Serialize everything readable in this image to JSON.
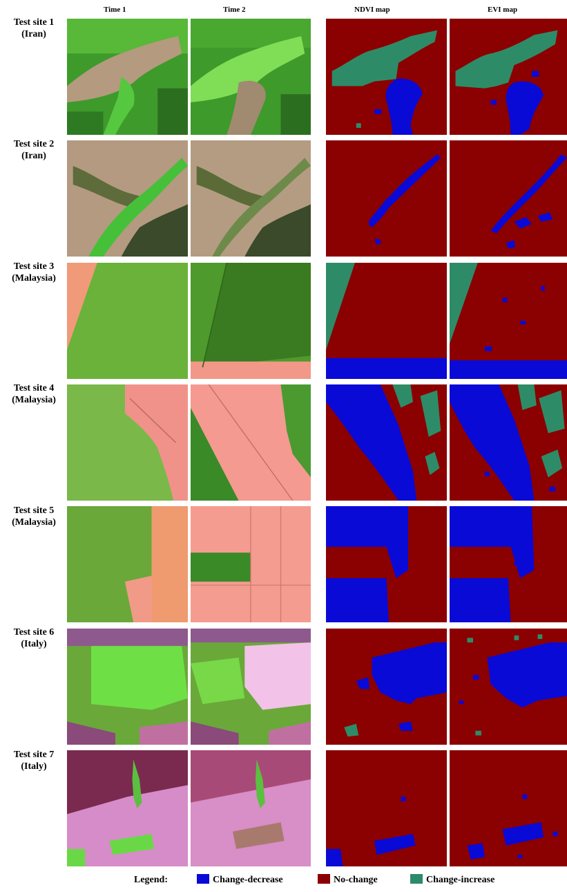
{
  "headers": {
    "time1": "Time 1",
    "time2": "Time 2",
    "ndvi": "NDVI map",
    "evi": "EVI map"
  },
  "rows": [
    {
      "site": "Test site 1",
      "country": "(Iran)"
    },
    {
      "site": "Test site 2",
      "country": "(Iran)"
    },
    {
      "site": "Test site 3",
      "country": "(Malaysia)"
    },
    {
      "site": "Test site 4",
      "country": "(Malaysia)"
    },
    {
      "site": "Test site 5",
      "country": "(Malaysia)"
    },
    {
      "site": "Test site 6",
      "country": "(Italy)"
    },
    {
      "site": "Test site 7",
      "country": "(Italy)"
    }
  ],
  "legend": {
    "title": "Legend:",
    "items": [
      {
        "label": "Change-decrease",
        "color": "#0a0ad6"
      },
      {
        "label": "No-change",
        "color": "#8b0000"
      },
      {
        "label": "Change-increase",
        "color": "#2e8b68"
      }
    ]
  },
  "colors": {
    "decrease": "#0a0ad6",
    "nochange": "#8b0000",
    "increase": "#2e8b68"
  }
}
